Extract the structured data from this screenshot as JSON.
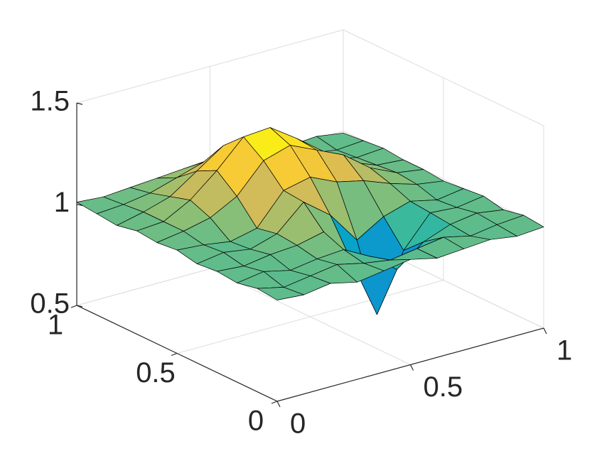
{
  "chart_data": {
    "type": "surface",
    "x": [
      0,
      0.1,
      0.2,
      0.3,
      0.4,
      0.5,
      0.6,
      0.7,
      0.8,
      0.9,
      1
    ],
    "y": [
      0,
      0.1,
      0.2,
      0.3,
      0.4,
      0.5,
      0.6,
      0.7,
      0.8,
      0.9,
      1
    ],
    "z": [
      [
        1.0,
        0.99,
        1.01,
        0.98,
        1.0,
        1.02,
        0.99,
        1.0,
        1.01,
        0.99,
        1.0
      ],
      [
        1.01,
        0.98,
        1.0,
        1.02,
        0.99,
        0.97,
        0.99,
        1.01,
        0.98,
        1.0,
        1.01
      ],
      [
        0.99,
        1.01,
        0.98,
        1.0,
        1.01,
        0.94,
        0.84,
        0.94,
        0.99,
        1.01,
        0.99
      ],
      [
        1.0,
        0.99,
        1.01,
        1.02,
        1.05,
        0.88,
        0.57,
        0.85,
        1.0,
        0.99,
        1.01
      ],
      [
        0.99,
        1.01,
        0.99,
        1.03,
        1.15,
        1.05,
        0.89,
        0.97,
        1.01,
        0.98,
        1.0
      ],
      [
        1.01,
        1.0,
        0.98,
        1.01,
        1.16,
        1.19,
        1.13,
        1.1,
        1.05,
        1.01,
        0.99
      ],
      [
        1.0,
        1.02,
        1.05,
        1.12,
        1.26,
        1.3,
        1.24,
        1.18,
        1.08,
        1.02,
        1.0
      ],
      [
        1.01,
        1.02,
        1.09,
        1.2,
        1.33,
        1.34,
        1.25,
        1.15,
        1.06,
        1.01,
        1.0
      ],
      [
        0.99,
        1.02,
        1.06,
        1.15,
        1.24,
        1.24,
        1.16,
        1.08,
        1.03,
        1.0,
        1.01
      ],
      [
        1.0,
        1.01,
        1.03,
        1.07,
        1.11,
        1.12,
        1.07,
        1.03,
        1.01,
        0.99,
        1.0
      ],
      [
        1.01,
        1.0,
        1.01,
        1.02,
        1.03,
        1.04,
        1.02,
        1.01,
        1.0,
        1.01,
        0.99
      ]
    ],
    "xlim": [
      0,
      1
    ],
    "ylim": [
      0,
      1
    ],
    "zlim": [
      0.5,
      1.5
    ],
    "xticks": [
      0,
      0.5,
      1
    ],
    "yticks": [
      0,
      0.5,
      1
    ],
    "zticks": [
      0.5,
      1,
      1.5
    ],
    "grid": true,
    "edge_color": "#000000",
    "colormap": [
      "#352a87",
      "#0363e1",
      "#1485d4",
      "#06a7c6",
      "#38b99e",
      "#92bf73",
      "#d9ba56",
      "#fcce2e",
      "#f9fb0e"
    ]
  }
}
